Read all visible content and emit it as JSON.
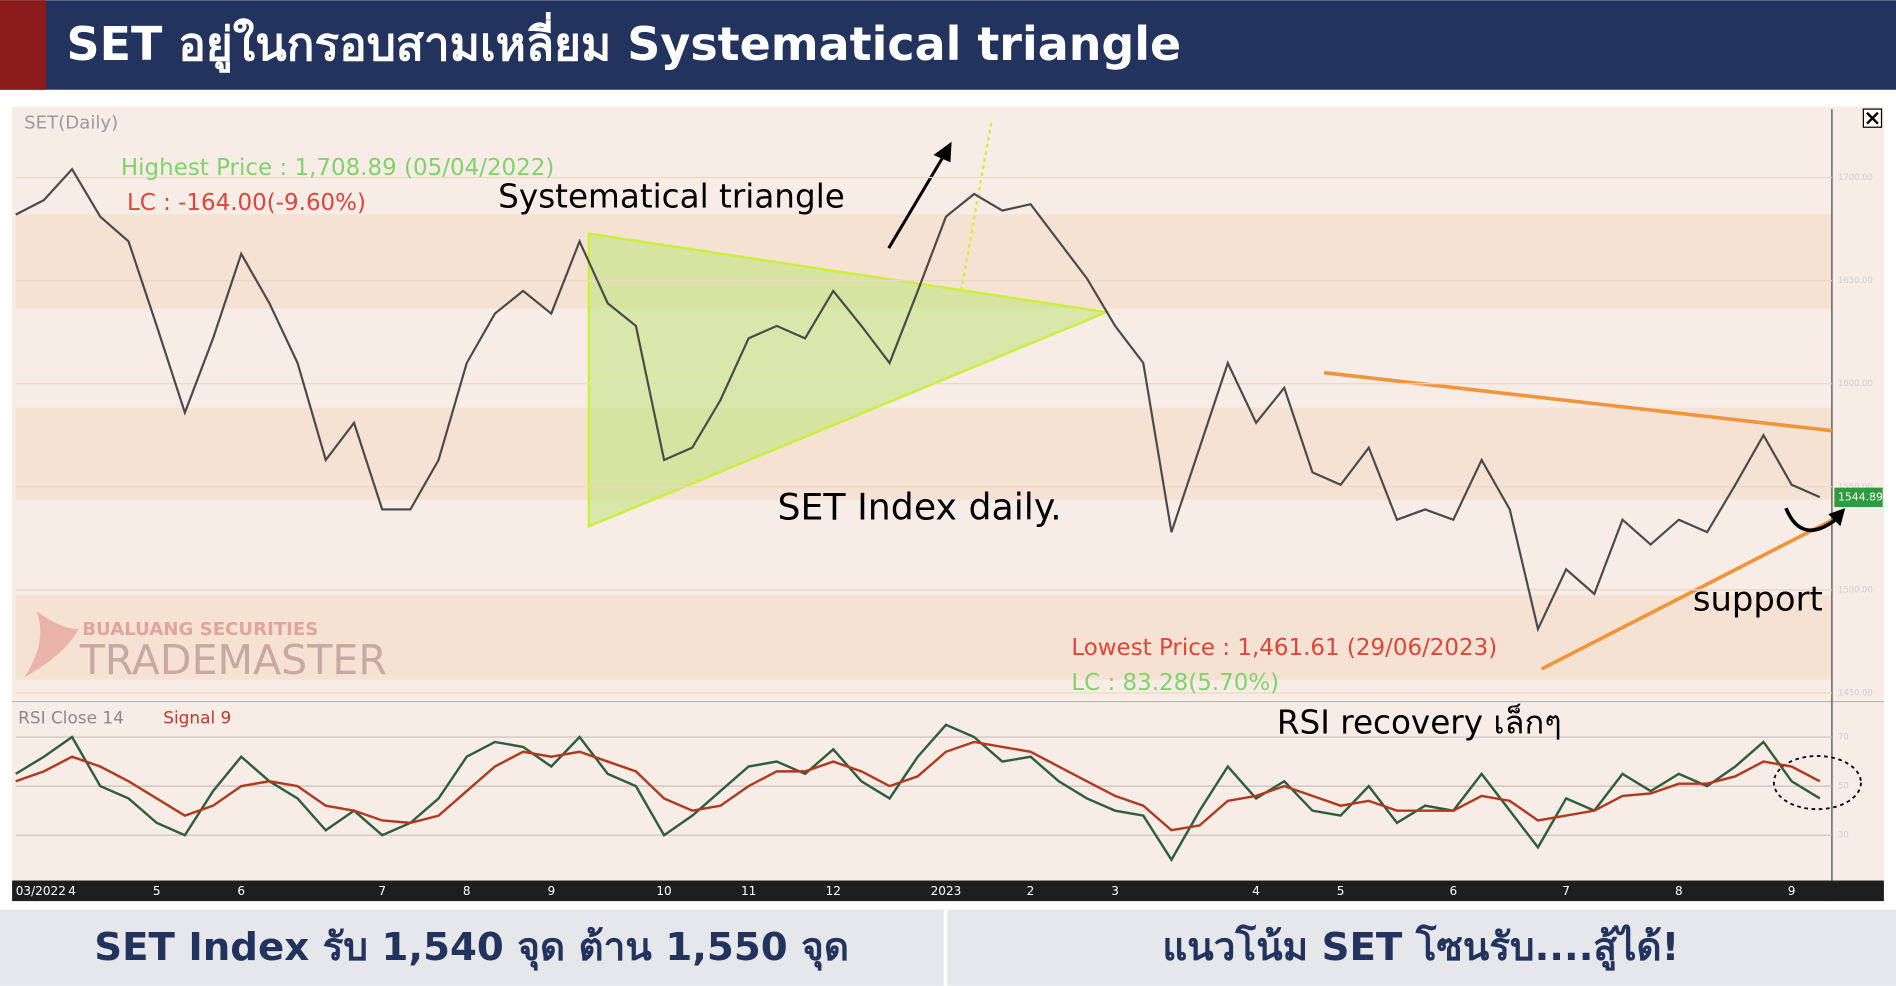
{
  "header": {
    "title": "SET อยู่ในกรอบสามเหลี่ยม Systematical triangle"
  },
  "footer": {
    "left": "SET Index รับ 1,540 จุด ต้าน 1,550 จุด",
    "right": "แนวโน้ม SET โซนรับ....สู้ได้!"
  },
  "watermark": {
    "company": "BUALUANG SECURITIES",
    "product": "TRADEMASTER"
  },
  "chart_data": [
    {
      "type": "line",
      "title": "SET(Daily)",
      "categories": [
        "03/2022",
        null,
        "4",
        null,
        null,
        "5",
        null,
        null,
        "6",
        null,
        null,
        null,
        null,
        "7",
        null,
        null,
        "8",
        null,
        null,
        "9",
        null,
        null,
        null,
        "10",
        null,
        null,
        "11",
        null,
        null,
        "12",
        null,
        null,
        null,
        "2023",
        null,
        null,
        "2",
        null,
        null,
        "3",
        null,
        null,
        null,
        null,
        "4",
        null,
        null,
        "5",
        null,
        null,
        null,
        "6",
        null,
        null,
        null,
        "7",
        null,
        null,
        null,
        "8",
        null,
        null,
        null,
        "9",
        null
      ],
      "series": [
        {
          "name": "SET Index",
          "color": "#4a4a4a",
          "values": [
            1682,
            1689,
            1704,
            1681,
            1669,
            1628,
            1586,
            1622,
            1663,
            1639,
            1610,
            1563,
            1581,
            1539,
            1539,
            1563,
            1610,
            1634,
            1645,
            1634,
            1669,
            1639,
            1628,
            1563,
            1569,
            1592,
            1622,
            1628,
            1622,
            1645,
            1628,
            1610,
            1645,
            1681,
            1692,
            1684,
            1687,
            1669,
            1651,
            1628,
            1610,
            1528,
            1569,
            1610,
            1581,
            1598,
            1557,
            1551,
            1569,
            1534,
            1539,
            1534,
            1563,
            1539,
            1481,
            1510,
            1498,
            1534,
            1522,
            1534,
            1528,
            1551,
            1575,
            1551,
            1545
          ]
        }
      ],
      "ylim": [
        1447,
        1732
      ],
      "yticks": [
        {
          "value": 1450,
          "label": "1450.00"
        },
        {
          "value": 1500,
          "label": "1500.00"
        },
        {
          "value": 1550,
          "label": "1550.00"
        },
        {
          "value": 1600,
          "label": "1600.00"
        },
        {
          "value": 1650,
          "label": "1650.00"
        },
        {
          "value": 1700,
          "label": "1700.00"
        }
      ],
      "last_price": 1544.89,
      "annotations": [
        "Highest Price : 1,708.89 (05/04/2022)",
        "LC : -164.00(-9.60%)",
        "Systematical triangle",
        "SET Index daily.",
        "Lowest Price : 1,461.61 (29/06/2023)",
        "LC : 83.28(5.70%)",
        "support"
      ]
    },
    {
      "type": "line",
      "title": "RSI recovery เล็กๆ",
      "series": [
        {
          "name": "RSI Close 14",
          "color": "#2f5e3e",
          "values": [
            55,
            62,
            70,
            50,
            45,
            35,
            30,
            48,
            62,
            52,
            45,
            32,
            40,
            30,
            35,
            45,
            62,
            68,
            66,
            58,
            70,
            55,
            50,
            30,
            38,
            48,
            58,
            60,
            55,
            65,
            52,
            45,
            62,
            75,
            70,
            60,
            62,
            52,
            45,
            40,
            38,
            20,
            40,
            58,
            45,
            52,
            40,
            38,
            50,
            35,
            42,
            40,
            55,
            40,
            25,
            45,
            40,
            55,
            48,
            55,
            50,
            58,
            68,
            52,
            45
          ]
        },
        {
          "name": "Signal 9",
          "color": "#b03a1e",
          "values": [
            52,
            56,
            62,
            58,
            52,
            45,
            38,
            42,
            50,
            52,
            50,
            42,
            40,
            36,
            35,
            38,
            48,
            58,
            64,
            62,
            64,
            60,
            56,
            45,
            40,
            42,
            50,
            56,
            56,
            60,
            56,
            50,
            54,
            64,
            68,
            66,
            64,
            58,
            52,
            46,
            42,
            32,
            34,
            44,
            46,
            50,
            46,
            42,
            44,
            40,
            40,
            40,
            46,
            44,
            36,
            38,
            40,
            46,
            47,
            51,
            51,
            54,
            60,
            58,
            52
          ]
        }
      ],
      "ylim": [
        12,
        82
      ],
      "yticks": [
        30,
        50,
        70
      ]
    }
  ]
}
